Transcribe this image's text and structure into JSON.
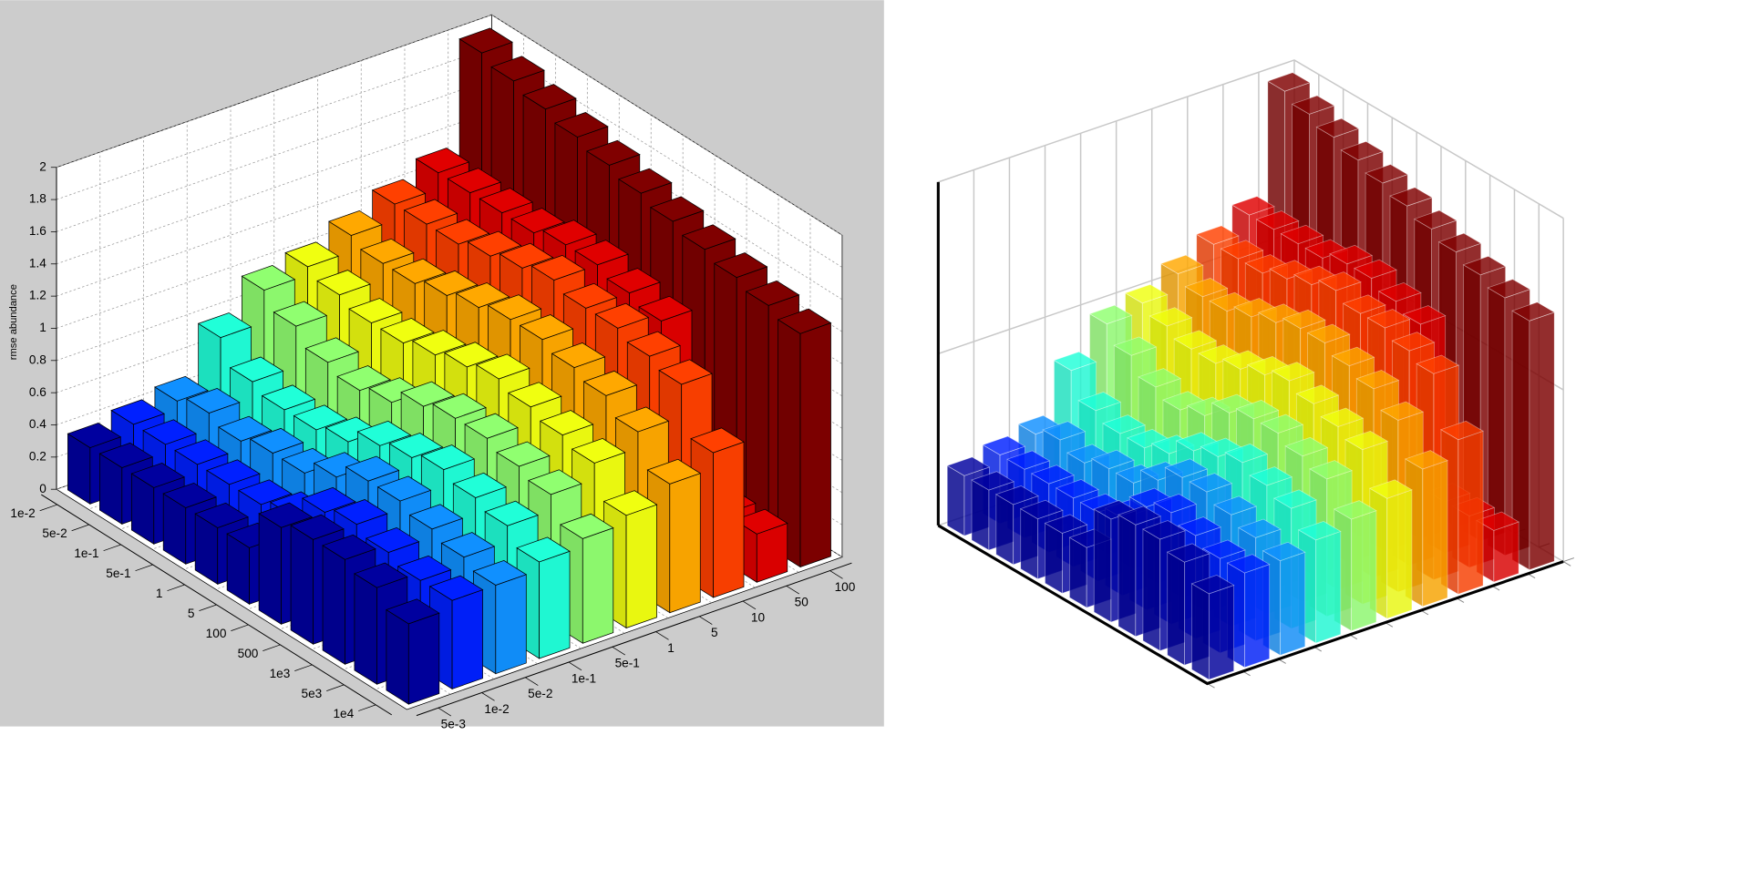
{
  "chart_data": {
    "type": "bar3d",
    "zlabel": "rmse abundance",
    "rows": [
      "1e-2",
      "5e-2",
      "1e-1",
      "5e-1",
      "1",
      "5",
      "100",
      "500",
      "1e3",
      "5e3",
      "1e4"
    ],
    "columns": [
      "5e-3",
      "1e-2",
      "5e-2",
      "1e-1",
      "5e-1",
      "1",
      "5",
      "10",
      "50",
      "100"
    ],
    "colors": [
      "#00009f",
      "#0020ff",
      "#1090ff",
      "#20ffd8",
      "#90ff70",
      "#f0ff10",
      "#ffa800",
      "#ff4000",
      "#e00000",
      "#800000"
    ],
    "values": [
      [
        0.35,
        0.4,
        0.45,
        0.75,
        0.95,
        1.0,
        1.1,
        1.2,
        1.3,
        1.95
      ],
      [
        0.35,
        0.4,
        0.5,
        0.6,
        0.85,
        0.95,
        1.05,
        1.2,
        1.3,
        1.9
      ],
      [
        0.35,
        0.4,
        0.45,
        0.55,
        0.75,
        0.9,
        1.05,
        1.2,
        1.3,
        1.85
      ],
      [
        0.35,
        0.4,
        0.5,
        0.55,
        0.7,
        0.9,
        1.1,
        1.25,
        1.3,
        1.8
      ],
      [
        0.35,
        0.4,
        0.5,
        0.6,
        0.75,
        0.95,
        1.15,
        1.3,
        1.35,
        1.75
      ],
      [
        0.35,
        0.45,
        0.6,
        0.7,
        0.85,
        1.0,
        1.2,
        1.35,
        1.35,
        1.7
      ],
      [
        0.6,
        0.6,
        0.7,
        0.75,
        0.9,
        1.05,
        1.2,
        1.3,
        1.3,
        1.65
      ],
      [
        0.65,
        0.65,
        0.7,
        0.8,
        0.9,
        1.0,
        1.15,
        1.3,
        1.25,
        1.6
      ],
      [
        0.65,
        0.6,
        0.65,
        0.75,
        0.85,
        0.95,
        1.1,
        1.25,
        0.3,
        1.55
      ],
      [
        0.6,
        0.55,
        0.6,
        0.7,
        0.8,
        0.9,
        1.0,
        1.2,
        0.3,
        1.5
      ],
      [
        0.5,
        0.55,
        0.55,
        0.6,
        0.65,
        0.7,
        0.8,
        0.9,
        0.3,
        1.45
      ]
    ],
    "zlim": [
      0,
      2
    ],
    "zticks": [
      0,
      0.2,
      0.4,
      0.6,
      0.8,
      1,
      1.2,
      1.4,
      1.6,
      1.8,
      2
    ],
    "grid": true
  }
}
